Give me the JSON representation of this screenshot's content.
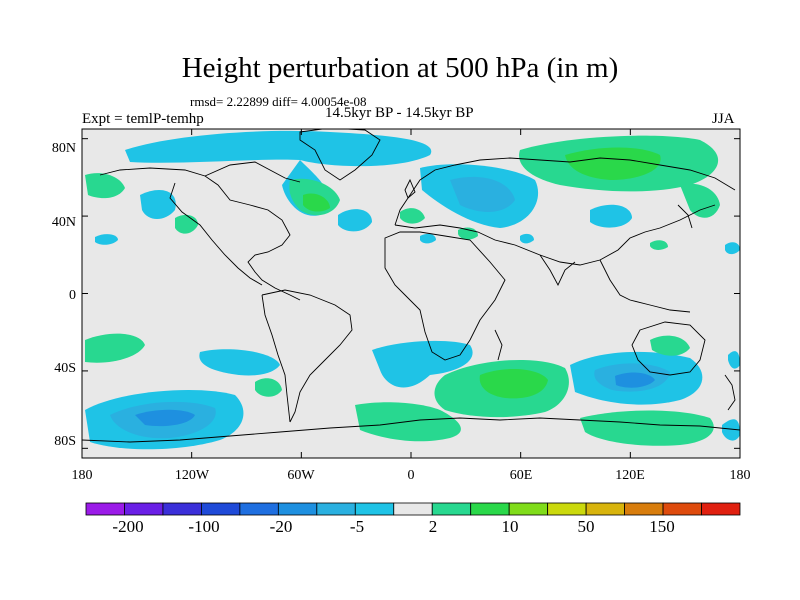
{
  "title": "Height perturbation at 500 hPa (in m)",
  "stats": "rmsd= 2.22899  diff= 4.00054e-08",
  "experiment": "Expt = temlP-temhp",
  "period": "14.5kyr BP - 14.5kyr BP",
  "season": "JJA",
  "map_axes": {
    "lat_labels": [
      "80N",
      "40N",
      "0",
      "40S",
      "80S"
    ],
    "lat_values": [
      80,
      40,
      0,
      -40,
      -80
    ],
    "lon_labels": [
      "180",
      "120W",
      "60W",
      "0",
      "60E",
      "120E",
      "180"
    ],
    "lon_values": [
      -180,
      -120,
      -60,
      0,
      60,
      120,
      180
    ]
  },
  "colorbar": {
    "labels": [
      "-200",
      "-100",
      "-20",
      "-5",
      "2",
      "10",
      "50",
      "150"
    ],
    "label_box_index": [
      1,
      3,
      5,
      7,
      9,
      11,
      13,
      15
    ],
    "colors": [
      "#9b1be8",
      "#6a1fe6",
      "#3b2fd9",
      "#1f4ad8",
      "#1f6fe0",
      "#1e90e0",
      "#2ab0e0",
      "#1fc3e6",
      "#e8e8e8",
      "#28d890",
      "#2ad84a",
      "#80dc1a",
      "#cbd90d",
      "#d8b40d",
      "#d87d0d",
      "#de4b0d",
      "#e02010"
    ]
  },
  "colors": {
    "land_ocean_bg": "#e8e8e8",
    "neg_light": "#1fc3e6",
    "neg_mid": "#2ab0e0",
    "neg_strong": "#1e90e0",
    "pos_light": "#28d890",
    "pos_mid": "#2ad84a",
    "pos_strong": "#80dc1a",
    "coast": "#000000"
  }
}
